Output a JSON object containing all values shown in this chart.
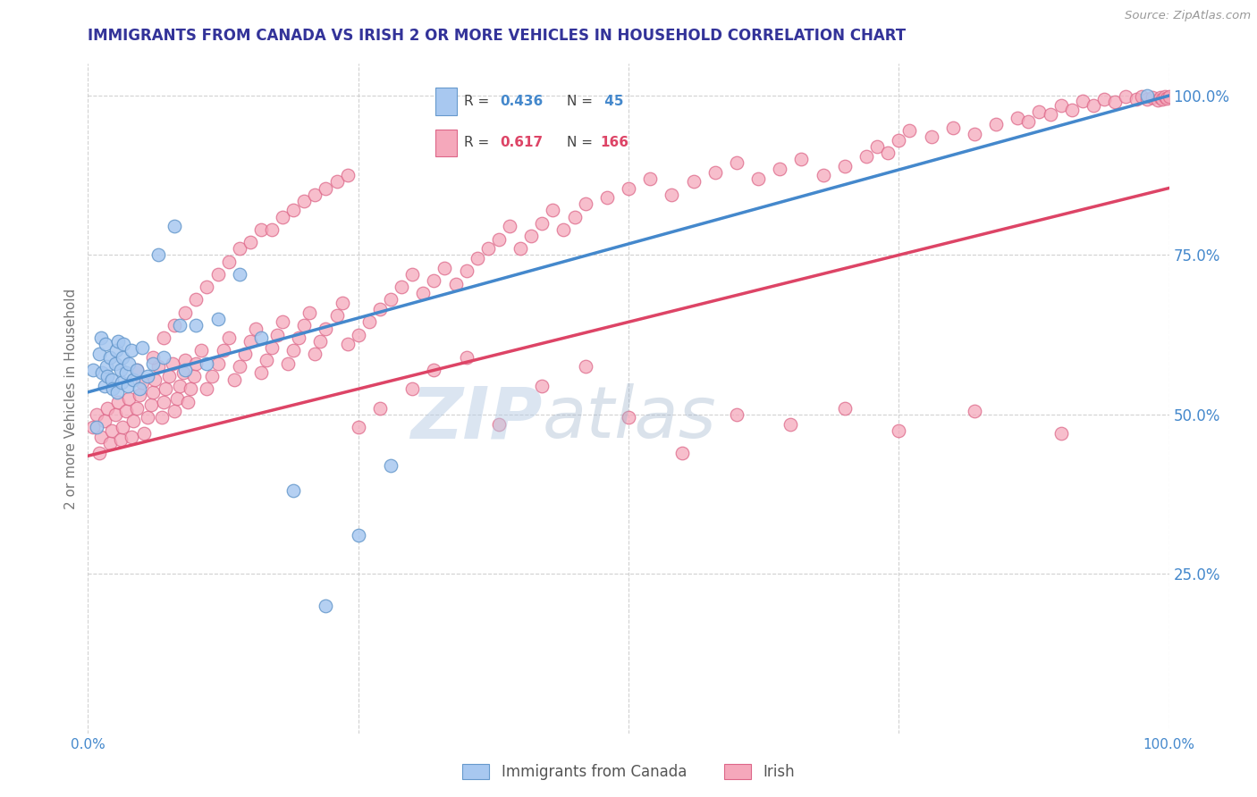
{
  "title": "IMMIGRANTS FROM CANADA VS IRISH 2 OR MORE VEHICLES IN HOUSEHOLD CORRELATION CHART",
  "source": "Source: ZipAtlas.com",
  "ylabel": "2 or more Vehicles in Household",
  "xlim": [
    0.0,
    1.0
  ],
  "ylim": [
    0.0,
    1.05
  ],
  "legend_labels": [
    "Immigrants from Canada",
    "Irish"
  ],
  "blue_R": 0.436,
  "blue_N": 45,
  "pink_R": 0.617,
  "pink_N": 166,
  "blue_color": "#A8C8F0",
  "pink_color": "#F5A8BB",
  "blue_edge_color": "#6699CC",
  "pink_edge_color": "#DD6688",
  "blue_line_color": "#4488CC",
  "pink_line_color": "#DD4466",
  "watermark_zip_color": "#A0B8D8",
  "watermark_atlas_color": "#8090B0",
  "background_color": "#FFFFFF",
  "grid_color": "#CCCCCC",
  "title_color": "#333399",
  "axis_label_color": "#777777",
  "tick_label_color": "#4488CC",
  "blue_line_x0": 0.0,
  "blue_line_y0": 0.535,
  "blue_line_x1": 1.0,
  "blue_line_y1": 1.0,
  "pink_line_x0": 0.0,
  "pink_line_y0": 0.435,
  "pink_line_x1": 1.0,
  "pink_line_y1": 0.855,
  "blue_x": [
    0.005,
    0.008,
    0.01,
    0.012,
    0.013,
    0.015,
    0.016,
    0.017,
    0.018,
    0.02,
    0.022,
    0.023,
    0.025,
    0.026,
    0.027,
    0.028,
    0.03,
    0.031,
    0.032,
    0.033,
    0.035,
    0.037,
    0.038,
    0.04,
    0.042,
    0.045,
    0.048,
    0.05,
    0.055,
    0.06,
    0.065,
    0.07,
    0.08,
    0.085,
    0.09,
    0.1,
    0.11,
    0.12,
    0.14,
    0.16,
    0.19,
    0.22,
    0.25,
    0.28,
    0.98
  ],
  "blue_y": [
    0.57,
    0.48,
    0.595,
    0.62,
    0.565,
    0.545,
    0.61,
    0.575,
    0.56,
    0.59,
    0.555,
    0.54,
    0.58,
    0.6,
    0.535,
    0.615,
    0.57,
    0.55,
    0.59,
    0.61,
    0.565,
    0.545,
    0.58,
    0.6,
    0.555,
    0.57,
    0.54,
    0.605,
    0.56,
    0.58,
    0.75,
    0.59,
    0.795,
    0.64,
    0.57,
    0.64,
    0.58,
    0.65,
    0.72,
    0.62,
    0.38,
    0.2,
    0.31,
    0.42,
    1.0
  ],
  "pink_x": [
    0.005,
    0.008,
    0.01,
    0.012,
    0.015,
    0.018,
    0.02,
    0.022,
    0.025,
    0.028,
    0.03,
    0.032,
    0.035,
    0.038,
    0.04,
    0.042,
    0.045,
    0.048,
    0.05,
    0.052,
    0.055,
    0.058,
    0.06,
    0.062,
    0.065,
    0.068,
    0.07,
    0.072,
    0.075,
    0.078,
    0.08,
    0.082,
    0.085,
    0.088,
    0.09,
    0.092,
    0.095,
    0.098,
    0.1,
    0.105,
    0.11,
    0.115,
    0.12,
    0.125,
    0.13,
    0.135,
    0.14,
    0.145,
    0.15,
    0.155,
    0.16,
    0.165,
    0.17,
    0.175,
    0.18,
    0.185,
    0.19,
    0.195,
    0.2,
    0.205,
    0.21,
    0.215,
    0.22,
    0.23,
    0.235,
    0.24,
    0.25,
    0.26,
    0.27,
    0.28,
    0.29,
    0.3,
    0.31,
    0.32,
    0.33,
    0.34,
    0.35,
    0.36,
    0.37,
    0.38,
    0.39,
    0.4,
    0.41,
    0.42,
    0.43,
    0.44,
    0.45,
    0.46,
    0.48,
    0.5,
    0.52,
    0.54,
    0.56,
    0.58,
    0.6,
    0.62,
    0.64,
    0.66,
    0.68,
    0.7,
    0.72,
    0.73,
    0.74,
    0.75,
    0.76,
    0.78,
    0.8,
    0.82,
    0.84,
    0.86,
    0.87,
    0.88,
    0.89,
    0.9,
    0.91,
    0.92,
    0.93,
    0.94,
    0.95,
    0.96,
    0.97,
    0.975,
    0.98,
    0.985,
    0.99,
    0.992,
    0.994,
    0.996,
    0.998,
    1.0,
    0.045,
    0.06,
    0.07,
    0.08,
    0.09,
    0.1,
    0.11,
    0.12,
    0.13,
    0.14,
    0.15,
    0.16,
    0.17,
    0.18,
    0.19,
    0.2,
    0.21,
    0.22,
    0.23,
    0.24,
    0.25,
    0.27,
    0.3,
    0.32,
    0.35,
    0.38,
    0.42,
    0.46,
    0.5,
    0.55,
    0.6,
    0.65,
    0.7,
    0.75,
    0.82,
    0.9
  ],
  "pink_y": [
    0.48,
    0.5,
    0.44,
    0.465,
    0.49,
    0.51,
    0.455,
    0.475,
    0.5,
    0.52,
    0.46,
    0.48,
    0.505,
    0.525,
    0.465,
    0.49,
    0.51,
    0.53,
    0.55,
    0.47,
    0.495,
    0.515,
    0.535,
    0.555,
    0.575,
    0.495,
    0.52,
    0.54,
    0.56,
    0.58,
    0.505,
    0.525,
    0.545,
    0.565,
    0.585,
    0.52,
    0.54,
    0.56,
    0.58,
    0.6,
    0.54,
    0.56,
    0.58,
    0.6,
    0.62,
    0.555,
    0.575,
    0.595,
    0.615,
    0.635,
    0.565,
    0.585,
    0.605,
    0.625,
    0.645,
    0.58,
    0.6,
    0.62,
    0.64,
    0.66,
    0.595,
    0.615,
    0.635,
    0.655,
    0.675,
    0.61,
    0.625,
    0.645,
    0.665,
    0.68,
    0.7,
    0.72,
    0.69,
    0.71,
    0.73,
    0.705,
    0.725,
    0.745,
    0.76,
    0.775,
    0.795,
    0.76,
    0.78,
    0.8,
    0.82,
    0.79,
    0.81,
    0.83,
    0.84,
    0.855,
    0.87,
    0.845,
    0.865,
    0.88,
    0.895,
    0.87,
    0.885,
    0.9,
    0.875,
    0.89,
    0.905,
    0.92,
    0.91,
    0.93,
    0.945,
    0.935,
    0.95,
    0.94,
    0.955,
    0.965,
    0.96,
    0.975,
    0.97,
    0.985,
    0.978,
    0.992,
    0.985,
    0.995,
    0.99,
    0.998,
    0.995,
    0.998,
    0.994,
    0.997,
    0.993,
    0.997,
    0.994,
    0.998,
    0.996,
    0.999,
    0.57,
    0.59,
    0.62,
    0.64,
    0.66,
    0.68,
    0.7,
    0.72,
    0.74,
    0.76,
    0.77,
    0.79,
    0.79,
    0.81,
    0.82,
    0.835,
    0.845,
    0.855,
    0.865,
    0.875,
    0.48,
    0.51,
    0.54,
    0.57,
    0.59,
    0.485,
    0.545,
    0.575,
    0.495,
    0.44,
    0.5,
    0.485,
    0.51,
    0.475,
    0.505,
    0.47
  ]
}
